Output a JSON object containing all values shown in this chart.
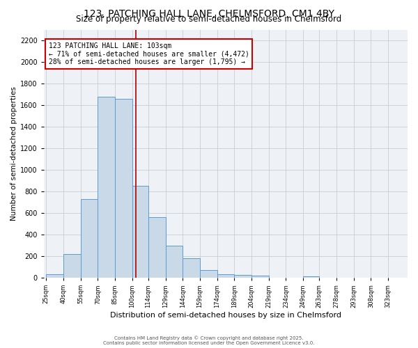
{
  "title": "123, PATCHING HALL LANE, CHELMSFORD, CM1 4BY",
  "subtitle": "Size of property relative to semi-detached houses in Chelmsford",
  "xlabel": "Distribution of semi-detached houses by size in Chelmsford",
  "ylabel": "Number of semi-detached properties",
  "footnote1": "Contains HM Land Registry data © Crown copyright and database right 2025.",
  "footnote2": "Contains public sector information licensed under the Open Government Licence v3.0.",
  "bin_labels": [
    "25sqm",
    "40sqm",
    "55sqm",
    "70sqm",
    "85sqm",
    "100sqm",
    "114sqm",
    "129sqm",
    "144sqm",
    "159sqm",
    "174sqm",
    "189sqm",
    "204sqm",
    "219sqm",
    "234sqm",
    "249sqm",
    "263sqm",
    "278sqm",
    "293sqm",
    "308sqm",
    "323sqm"
  ],
  "bin_edges": [
    25,
    40,
    55,
    70,
    85,
    100,
    114,
    129,
    144,
    159,
    174,
    189,
    204,
    219,
    234,
    249,
    263,
    278,
    293,
    308,
    323
  ],
  "bar_widths": [
    15,
    15,
    15,
    15,
    15,
    14,
    15,
    15,
    15,
    15,
    15,
    15,
    15,
    15,
    15,
    14,
    15,
    15,
    15,
    15,
    15
  ],
  "bar_values": [
    35,
    220,
    730,
    1680,
    1660,
    850,
    560,
    295,
    180,
    70,
    35,
    25,
    20,
    0,
    0,
    15,
    0,
    0,
    0,
    0,
    0
  ],
  "bar_color": "#c9d9e8",
  "bar_edgecolor": "#5b9bd5",
  "property_size": 103,
  "vline_color": "#aa0000",
  "annotation_text": "123 PATCHING HALL LANE: 103sqm\n← 71% of semi-detached houses are smaller (4,472)\n28% of semi-detached houses are larger (1,795) →",
  "annotation_box_edgecolor": "#cc0000",
  "ylim": [
    0,
    2300
  ],
  "yticks": [
    0,
    200,
    400,
    600,
    800,
    1000,
    1200,
    1400,
    1600,
    1800,
    2000,
    2200
  ],
  "grid_color": "#cccccc",
  "bg_color": "#eef2f7",
  "title_fontsize": 10,
  "subtitle_fontsize": 8.5,
  "annot_fontsize": 7
}
